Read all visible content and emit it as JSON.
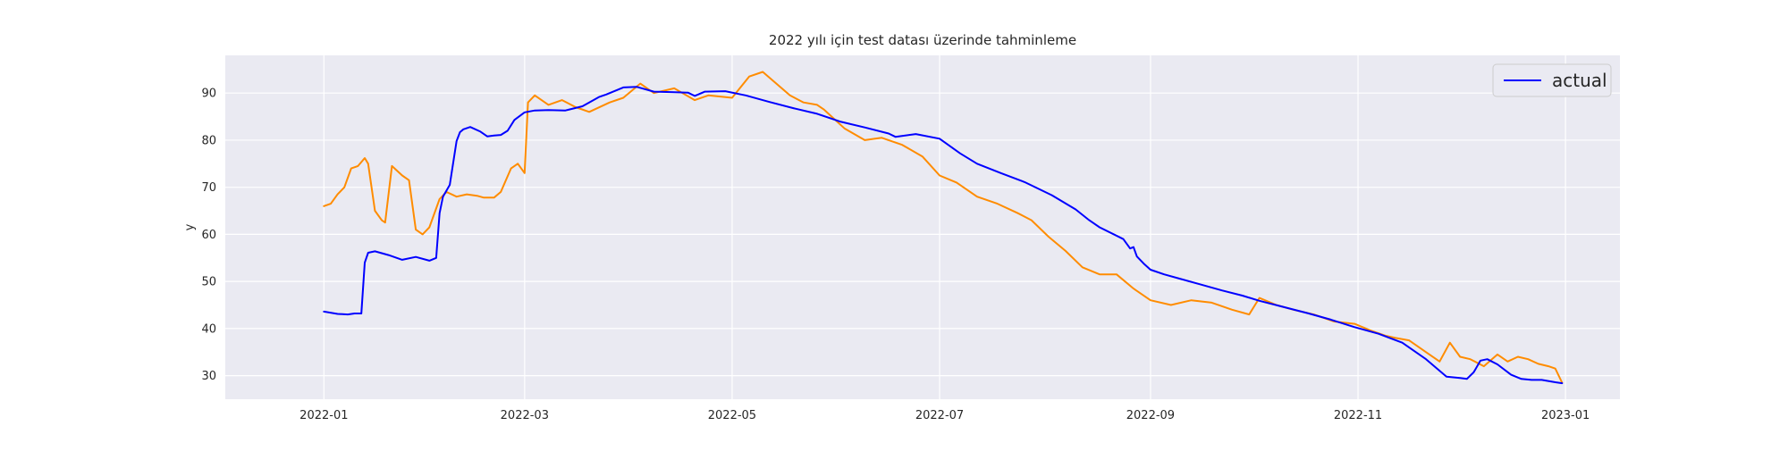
{
  "chart_data": {
    "type": "line",
    "title": "2022 yılı için test datası üzerinde tahminleme",
    "xlabel": "",
    "ylabel": "y",
    "x_type": "date",
    "xlim": [
      "2021-12-03",
      "2023-01-17"
    ],
    "ylim": [
      25,
      98
    ],
    "xticks": [
      "2022-01-01",
      "2022-03-01",
      "2022-05-01",
      "2022-07-01",
      "2022-09-01",
      "2022-11-01",
      "2023-01-01"
    ],
    "xtick_labels": [
      "2022-01",
      "2022-03",
      "2022-05",
      "2022-07",
      "2022-09",
      "2022-11",
      "2023-01"
    ],
    "yticks": [
      30,
      40,
      50,
      60,
      70,
      80,
      90
    ],
    "grid": true,
    "legend": {
      "position": "top-right",
      "entries": [
        "actual"
      ]
    },
    "colors": {
      "plot_bg": "#eaeaf2",
      "grid": "#ffffff",
      "actual": "#0000ff",
      "predicted": "#ff8c00"
    },
    "series": [
      {
        "name": "actual",
        "x": [
          "2022-01-01",
          "2022-01-05",
          "2022-01-08",
          "2022-01-10",
          "2022-01-12",
          "2022-01-13",
          "2022-01-14",
          "2022-01-16",
          "2022-01-20",
          "2022-01-24",
          "2022-01-28",
          "2022-02-01",
          "2022-02-03",
          "2022-02-04",
          "2022-02-05",
          "2022-02-07",
          "2022-02-09",
          "2022-02-10",
          "2022-02-11",
          "2022-02-13",
          "2022-02-16",
          "2022-02-18",
          "2022-02-20",
          "2022-02-22",
          "2022-02-24",
          "2022-02-26",
          "2022-03-01",
          "2022-03-04",
          "2022-03-08",
          "2022-03-13",
          "2022-03-18",
          "2022-03-23",
          "2022-03-25",
          "2022-03-30",
          "2022-04-03",
          "2022-04-08",
          "2022-04-13",
          "2022-04-18",
          "2022-04-20",
          "2022-04-23",
          "2022-04-29",
          "2022-05-05",
          "2022-05-12",
          "2022-05-19",
          "2022-05-26",
          "2022-06-02",
          "2022-06-09",
          "2022-06-16",
          "2022-06-18",
          "2022-06-24",
          "2022-07-01",
          "2022-07-07",
          "2022-07-12",
          "2022-07-19",
          "2022-07-26",
          "2022-08-03",
          "2022-08-10",
          "2022-08-14",
          "2022-08-17",
          "2022-08-24",
          "2022-08-26",
          "2022-08-27",
          "2022-08-28",
          "2022-08-30",
          "2022-09-01",
          "2022-09-05",
          "2022-09-10",
          "2022-09-16",
          "2022-09-22",
          "2022-09-28",
          "2022-10-03",
          "2022-10-10",
          "2022-10-17",
          "2022-10-24",
          "2022-10-31",
          "2022-11-07",
          "2022-11-14",
          "2022-11-21",
          "2022-11-27",
          "2022-12-01",
          "2022-12-03",
          "2022-12-05",
          "2022-12-07",
          "2022-12-09",
          "2022-12-12",
          "2022-12-16",
          "2022-12-19",
          "2022-12-22",
          "2022-12-25",
          "2022-12-29",
          "2022-12-31"
        ],
        "y": [
          43.6,
          43.1,
          43.0,
          43.2,
          43.2,
          54.0,
          56.1,
          56.4,
          55.6,
          54.6,
          55.2,
          54.4,
          55.0,
          64.5,
          68.0,
          70.5,
          79.8,
          81.7,
          82.3,
          82.8,
          81.8,
          80.8,
          81.0,
          81.1,
          82.0,
          84.3,
          85.9,
          86.3,
          86.4,
          86.3,
          87.2,
          89.2,
          89.7,
          91.2,
          91.3,
          90.3,
          90.2,
          90.1,
          89.4,
          90.3,
          90.4,
          89.5,
          88.1,
          86.8,
          85.6,
          83.9,
          82.7,
          81.4,
          80.7,
          81.3,
          80.3,
          77.2,
          75.0,
          73.0,
          71.1,
          68.3,
          65.3,
          63.0,
          61.5,
          59.0,
          57.0,
          57.3,
          55.3,
          53.8,
          52.5,
          51.5,
          50.5,
          49.3,
          48.1,
          47.0,
          45.9,
          44.6,
          43.3,
          41.9,
          40.3,
          38.9,
          37.0,
          33.5,
          29.8,
          29.5,
          29.3,
          30.7,
          33.2,
          33.5,
          32.4,
          30.2,
          29.3,
          29.1,
          29.1,
          28.6,
          28.4
        ]
      },
      {
        "x": [
          "2022-01-01",
          "2022-01-03",
          "2022-01-05",
          "2022-01-07",
          "2022-01-09",
          "2022-01-11",
          "2022-01-13",
          "2022-01-14",
          "2022-01-16",
          "2022-01-18",
          "2022-01-19",
          "2022-01-21",
          "2022-01-24",
          "2022-01-26",
          "2022-01-28",
          "2022-01-30",
          "2022-02-01",
          "2022-02-04",
          "2022-02-06",
          "2022-02-09",
          "2022-02-12",
          "2022-02-15",
          "2022-02-17",
          "2022-02-20",
          "2022-02-22",
          "2022-02-25",
          "2022-02-27",
          "2022-03-01",
          "2022-03-02",
          "2022-03-04",
          "2022-03-08",
          "2022-03-12",
          "2022-03-16",
          "2022-03-20",
          "2022-03-26",
          "2022-03-30",
          "2022-04-04",
          "2022-04-08",
          "2022-04-14",
          "2022-04-20",
          "2022-04-24",
          "2022-05-01",
          "2022-05-06",
          "2022-05-10",
          "2022-05-14",
          "2022-05-18",
          "2022-05-22",
          "2022-05-26",
          "2022-05-28",
          "2022-06-03",
          "2022-06-09",
          "2022-06-14",
          "2022-06-20",
          "2022-06-26",
          "2022-07-01",
          "2022-07-06",
          "2022-07-12",
          "2022-07-18",
          "2022-07-24",
          "2022-07-28",
          "2022-08-02",
          "2022-08-07",
          "2022-08-12",
          "2022-08-17",
          "2022-08-22",
          "2022-08-27",
          "2022-09-01",
          "2022-09-07",
          "2022-09-13",
          "2022-09-19",
          "2022-09-25",
          "2022-09-30",
          "2022-10-03",
          "2022-10-08",
          "2022-10-13",
          "2022-10-19",
          "2022-10-25",
          "2022-10-31",
          "2022-11-05",
          "2022-11-09",
          "2022-11-12",
          "2022-11-16",
          "2022-11-21",
          "2022-11-25",
          "2022-11-28",
          "2022-12-01",
          "2022-12-04",
          "2022-12-08",
          "2022-12-12",
          "2022-12-15",
          "2022-12-18",
          "2022-12-21",
          "2022-12-24",
          "2022-12-27",
          "2022-12-29",
          "2022-12-31"
        ],
        "y": [
          66.0,
          66.5,
          68.5,
          70.0,
          74.0,
          74.5,
          76.2,
          75.0,
          65.0,
          63.0,
          62.5,
          74.5,
          72.5,
          71.5,
          61.0,
          60.0,
          61.5,
          67.5,
          69.0,
          68.0,
          68.5,
          68.2,
          67.8,
          67.8,
          69.0,
          74.0,
          75.0,
          73.0,
          88.0,
          89.5,
          87.5,
          88.5,
          87.0,
          86.0,
          88.0,
          89.0,
          92.0,
          90.0,
          91.0,
          88.5,
          89.5,
          89.0,
          93.5,
          94.5,
          92.0,
          89.5,
          88.0,
          87.5,
          86.5,
          82.5,
          80.0,
          80.5,
          79.0,
          76.5,
          72.5,
          71.0,
          68.0,
          66.5,
          64.5,
          63.0,
          59.5,
          56.5,
          53.0,
          51.5,
          51.5,
          48.5,
          46.0,
          45.0,
          46.0,
          45.5,
          44.0,
          43.0,
          46.5,
          45.0,
          44.0,
          43.0,
          41.5,
          41.0,
          39.5,
          38.5,
          38.0,
          37.5,
          35.0,
          33.0,
          37.0,
          34.0,
          33.5,
          32.0,
          34.5,
          33.0,
          34.0,
          33.5,
          32.5,
          32.0,
          31.5,
          28.5
        ]
      }
    ]
  }
}
